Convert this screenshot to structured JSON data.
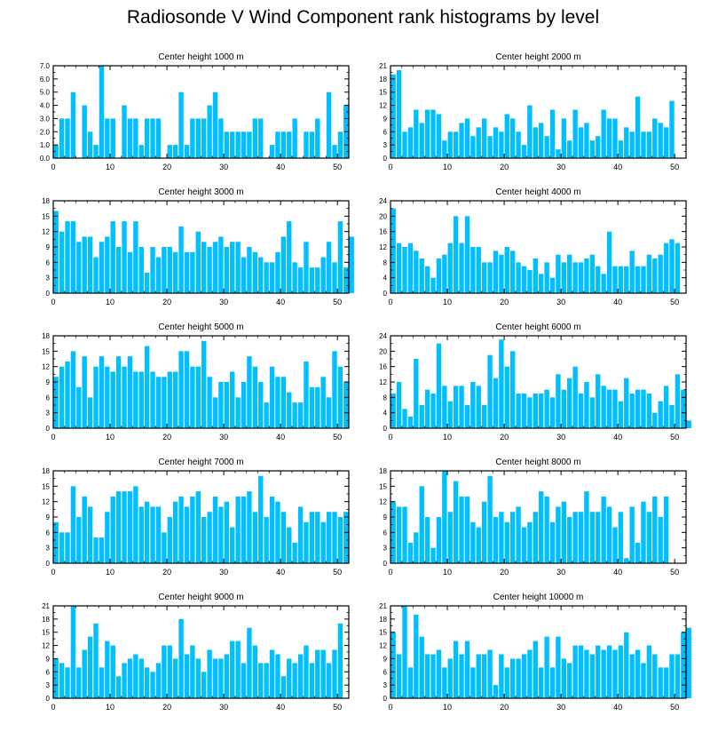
{
  "title": "Radiosonde V Wind Component rank histograms by level",
  "colors": {
    "bar": "#00bfff",
    "axis": "#000000",
    "background": "#ffffff"
  },
  "chart_data": [
    {
      "type": "bar",
      "title": "Center height 1000 m",
      "xlim": [
        0,
        52
      ],
      "ylim": [
        0,
        7
      ],
      "xticks": [
        0,
        10,
        20,
        30,
        40,
        50
      ],
      "yticks": [
        0,
        1,
        2,
        3,
        4,
        5,
        6,
        7
      ],
      "ytick_labels": [
        "0.0",
        "1.0",
        "2.0",
        "3.0",
        "4.0",
        "5.0",
        "6.0",
        "7.0"
      ],
      "values": [
        1,
        3,
        3,
        5,
        0,
        4,
        2,
        1,
        7,
        3,
        3,
        0,
        4,
        3,
        3,
        1,
        3,
        3,
        3,
        0,
        1,
        1,
        5,
        1,
        3,
        3,
        3,
        4,
        5,
        3,
        2,
        2,
        2,
        2,
        2,
        3,
        3,
        0,
        1,
        2,
        2,
        2,
        3,
        0,
        2,
        2,
        3,
        0,
        5,
        1,
        2,
        4
      ]
    },
    {
      "type": "bar",
      "title": "Center height 2000 m",
      "xlim": [
        0,
        52
      ],
      "ylim": [
        0,
        21
      ],
      "xticks": [
        0,
        10,
        20,
        30,
        40,
        50
      ],
      "yticks": [
        0,
        3,
        6,
        9,
        12,
        15,
        18,
        21
      ],
      "ytick_labels": [
        "0",
        "3",
        "6",
        "9",
        "12",
        "15",
        "18",
        "21"
      ],
      "values": [
        19,
        20,
        6,
        7,
        11,
        8,
        11,
        11,
        10,
        4,
        6,
        6,
        8,
        9,
        5,
        7,
        9,
        5,
        7,
        6,
        10,
        9,
        6,
        3,
        12,
        7,
        8,
        5,
        11,
        2,
        9,
        4,
        11,
        7,
        8,
        4,
        5,
        11,
        9,
        9,
        4,
        7,
        6,
        14,
        6,
        6,
        9,
        8,
        7,
        13,
        0,
        0
      ]
    },
    {
      "type": "bar",
      "title": "Center height 3000 m",
      "xlim": [
        0,
        52
      ],
      "ylim": [
        0,
        18
      ],
      "xticks": [
        0,
        10,
        20,
        30,
        40,
        50
      ],
      "yticks": [
        0,
        3,
        6,
        9,
        12,
        15,
        18
      ],
      "ytick_labels": [
        "0",
        "3",
        "6",
        "9",
        "12",
        "15",
        "18"
      ],
      "values": [
        16,
        12,
        14,
        14,
        10,
        11,
        11,
        7,
        10,
        11,
        14,
        9,
        14,
        8,
        14,
        9,
        4,
        9,
        7,
        9,
        9,
        8,
        13,
        8,
        8,
        12,
        10,
        9,
        10,
        11,
        9,
        10,
        10,
        7,
        9,
        8,
        7,
        6,
        6,
        8,
        11,
        14,
        6,
        5,
        10,
        5,
        5,
        7,
        10,
        6,
        14,
        5,
        11
      ]
    },
    {
      "type": "bar",
      "title": "Center height 4000 m",
      "xlim": [
        0,
        52
      ],
      "ylim": [
        0,
        24
      ],
      "xticks": [
        0,
        10,
        20,
        30,
        40,
        50
      ],
      "yticks": [
        0,
        4,
        8,
        12,
        16,
        20,
        24
      ],
      "ytick_labels": [
        "0",
        "4",
        "8",
        "12",
        "16",
        "20",
        "24"
      ],
      "values": [
        22,
        13,
        12,
        13,
        11,
        9,
        7,
        4,
        9,
        10,
        13,
        20,
        13,
        20,
        12,
        12,
        8,
        8,
        11,
        10,
        12,
        11,
        8,
        7,
        6,
        9,
        5,
        8,
        4,
        10,
        8,
        10,
        8,
        8,
        9,
        10,
        7,
        5,
        16,
        7,
        7,
        7,
        11,
        7,
        7,
        10,
        9,
        10,
        13,
        14,
        13,
        0
      ]
    },
    {
      "type": "bar",
      "title": "Center height 5000 m",
      "xlim": [
        0,
        52
      ],
      "ylim": [
        0,
        18
      ],
      "xticks": [
        0,
        10,
        20,
        30,
        40,
        50
      ],
      "yticks": [
        0,
        3,
        6,
        9,
        12,
        15,
        18
      ],
      "ytick_labels": [
        "0",
        "3",
        "6",
        "9",
        "12",
        "15",
        "18"
      ],
      "values": [
        10,
        12,
        13,
        15,
        8,
        14,
        6,
        12,
        14,
        12,
        11,
        14,
        12,
        14,
        11,
        11,
        16,
        11,
        10,
        10,
        11,
        11,
        15,
        15,
        12,
        12,
        17,
        10,
        6,
        9,
        9,
        11,
        6,
        9,
        14,
        12,
        9,
        5,
        12,
        10,
        10,
        7,
        5,
        5,
        13,
        8,
        8,
        10,
        6,
        15,
        12,
        9
      ]
    },
    {
      "type": "bar",
      "title": "Center height 6000 m",
      "xlim": [
        0,
        52
      ],
      "ylim": [
        0,
        24
      ],
      "xticks": [
        0,
        10,
        20,
        30,
        40,
        50
      ],
      "yticks": [
        0,
        4,
        8,
        12,
        16,
        20,
        24
      ],
      "ytick_labels": [
        "0",
        "4",
        "8",
        "12",
        "16",
        "20",
        "24"
      ],
      "values": [
        9,
        12,
        5,
        3,
        18,
        6,
        10,
        9,
        22,
        11,
        7,
        11,
        11,
        6,
        12,
        11,
        6,
        19,
        13,
        23,
        16,
        20,
        9,
        9,
        8,
        9,
        9,
        10,
        8,
        14,
        10,
        13,
        16,
        9,
        12,
        8,
        14,
        11,
        10,
        10,
        7,
        13,
        9,
        10,
        10,
        9,
        4,
        7,
        11,
        6,
        14,
        10,
        2
      ]
    },
    {
      "type": "bar",
      "title": "Center height 7000 m",
      "xlim": [
        0,
        52
      ],
      "ylim": [
        0,
        18
      ],
      "xticks": [
        0,
        10,
        20,
        30,
        40,
        50
      ],
      "yticks": [
        0,
        3,
        6,
        9,
        12,
        15,
        18
      ],
      "ytick_labels": [
        "0",
        "3",
        "6",
        "9",
        "12",
        "15",
        "18"
      ],
      "values": [
        8,
        6,
        6,
        15,
        9,
        13,
        11,
        5,
        5,
        10,
        13,
        14,
        14,
        14,
        15,
        11,
        12,
        11,
        11,
        6,
        9,
        12,
        13,
        11,
        13,
        14,
        9,
        10,
        13,
        11,
        12,
        7,
        13,
        13,
        14,
        10,
        17,
        9,
        13,
        12,
        10,
        7,
        4,
        11,
        8,
        10,
        10,
        8,
        10,
        10,
        9,
        10
      ]
    },
    {
      "type": "bar",
      "title": "Center height 8000 m",
      "xlim": [
        0,
        52
      ],
      "ylim": [
        0,
        18
      ],
      "xticks": [
        0,
        10,
        20,
        30,
        40,
        50
      ],
      "yticks": [
        0,
        3,
        6,
        9,
        12,
        15,
        18
      ],
      "ytick_labels": [
        "0",
        "3",
        "6",
        "9",
        "12",
        "15",
        "18"
      ],
      "values": [
        12,
        11,
        11,
        4,
        6,
        15,
        9,
        3,
        9,
        18,
        10,
        16,
        13,
        13,
        8,
        7,
        12,
        17,
        9,
        10,
        8,
        10,
        11,
        7,
        8,
        10,
        14,
        13,
        8,
        11,
        12,
        9,
        10,
        10,
        14,
        10,
        10,
        13,
        11,
        7,
        10,
        1,
        11,
        4,
        12,
        10,
        13,
        9,
        13,
        0,
        0
      ]
    },
    {
      "type": "bar",
      "title": "Center height 9000 m",
      "xlim": [
        0,
        52
      ],
      "ylim": [
        0,
        21
      ],
      "xticks": [
        0,
        10,
        20,
        30,
        40,
        50
      ],
      "yticks": [
        0,
        3,
        6,
        9,
        12,
        15,
        18,
        21
      ],
      "ytick_labels": [
        "0",
        "3",
        "6",
        "9",
        "12",
        "15",
        "18",
        "21"
      ],
      "values": [
        9,
        8,
        7,
        21,
        7,
        11,
        14,
        17,
        7,
        13,
        12,
        5,
        8,
        9,
        10,
        9,
        7,
        6,
        8,
        12,
        12,
        9,
        18,
        10,
        12,
        9,
        6,
        11,
        9,
        9,
        10,
        13,
        13,
        8,
        16,
        12,
        8,
        8,
        11,
        10,
        5,
        9,
        8,
        10,
        12,
        8,
        11,
        11,
        8,
        11,
        17,
        0
      ]
    },
    {
      "type": "bar",
      "title": "Center height 10000 m",
      "xlim": [
        0,
        52
      ],
      "ylim": [
        0,
        21
      ],
      "xticks": [
        0,
        10,
        20,
        30,
        40,
        50
      ],
      "yticks": [
        0,
        3,
        6,
        9,
        12,
        15,
        18,
        21
      ],
      "ytick_labels": [
        "0",
        "3",
        "6",
        "9",
        "12",
        "15",
        "18",
        "21"
      ],
      "values": [
        15,
        10,
        21,
        7,
        19,
        14,
        10,
        10,
        11,
        7,
        9,
        13,
        10,
        13,
        7,
        10,
        10,
        11,
        3,
        10,
        7,
        9,
        9,
        10,
        11,
        13,
        7,
        14,
        7,
        14,
        9,
        8,
        12,
        12,
        11,
        10,
        12,
        11,
        12,
        11,
        12,
        15,
        10,
        11,
        8,
        12,
        10,
        7,
        7,
        10,
        10,
        15,
        16
      ]
    }
  ]
}
